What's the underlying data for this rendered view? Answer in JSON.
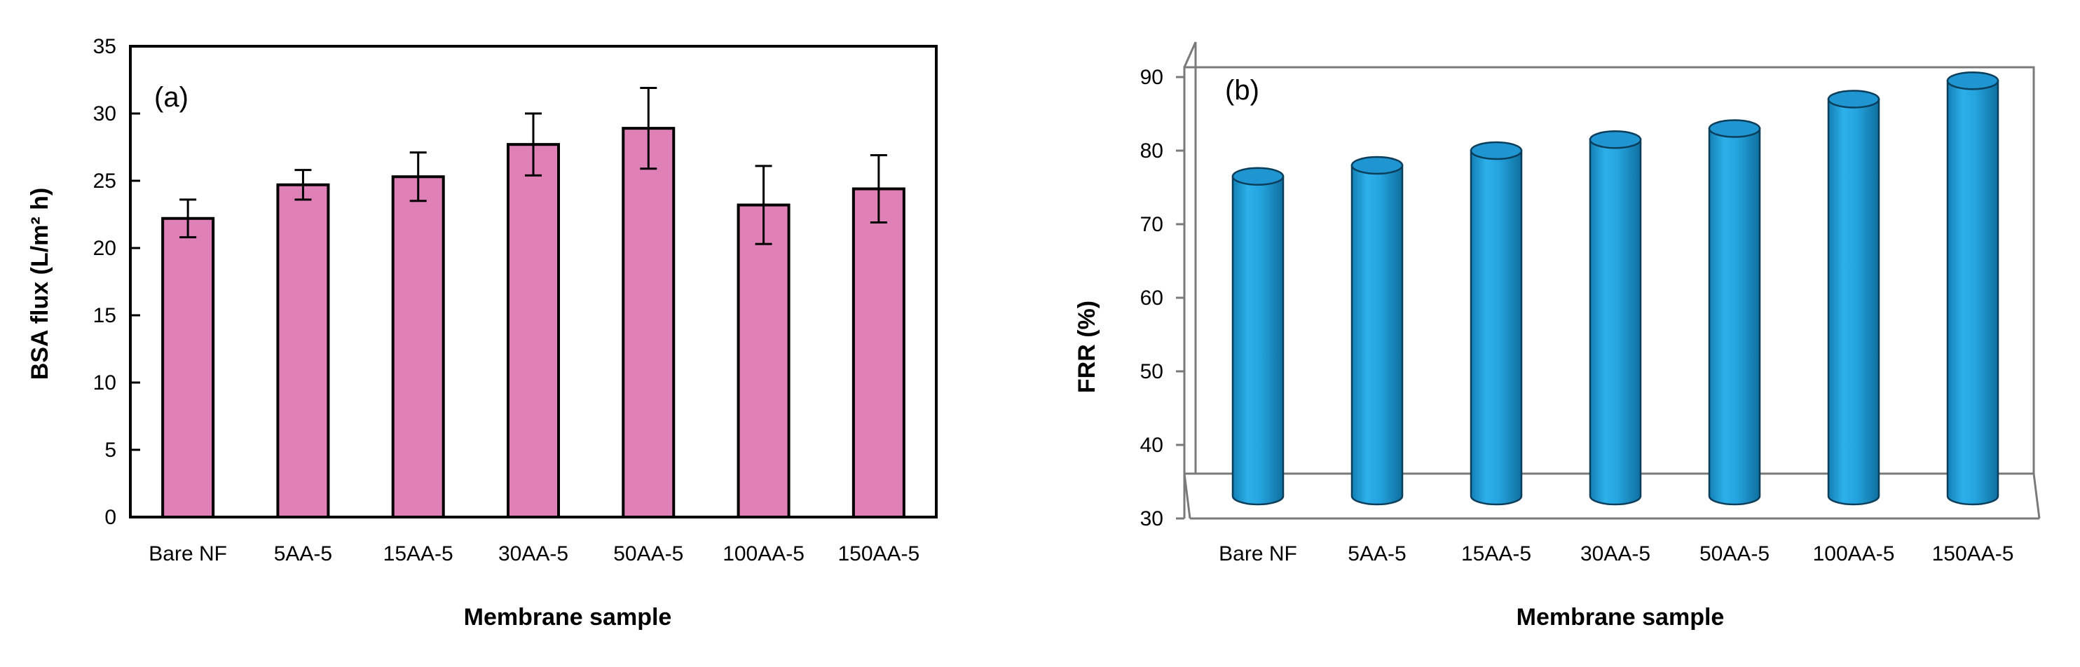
{
  "chart_data": [
    {
      "type": "bar",
      "panel_label": "(a)",
      "categories": [
        "Bare NF",
        "5AA-5",
        "15AA-5",
        "30AA-5",
        "50AA-5",
        "100AA-5",
        "150AA-5"
      ],
      "values": [
        22.2,
        24.7,
        25.3,
        27.7,
        28.9,
        23.2,
        24.4
      ],
      "errors": [
        1.4,
        1.1,
        1.8,
        2.3,
        3.0,
        2.9,
        2.5
      ],
      "xlabel": "Membrane sample",
      "ylabel": "BSA flux (L/m² h)",
      "ylim": [
        0,
        35
      ],
      "yticks": [
        0,
        5,
        10,
        15,
        20,
        25,
        30,
        35
      ],
      "color": "#df81b7",
      "grid": false
    },
    {
      "type": "bar",
      "style": "3d-cylinder",
      "panel_label": "(b)",
      "categories": [
        "Bare NF",
        "5AA-5",
        "15AA-5",
        "30AA-5",
        "50AA-5",
        "100AA-5",
        "150AA-5"
      ],
      "values": [
        76.5,
        78,
        80,
        81.5,
        83,
        87,
        89.5
      ],
      "xlabel": "Membrane sample",
      "ylabel": "FRR (%)",
      "ylim": [
        30,
        90
      ],
      "yticks": [
        30,
        40,
        50,
        60,
        70,
        80,
        90
      ],
      "color": "#1f9ad6",
      "grid": false
    }
  ]
}
